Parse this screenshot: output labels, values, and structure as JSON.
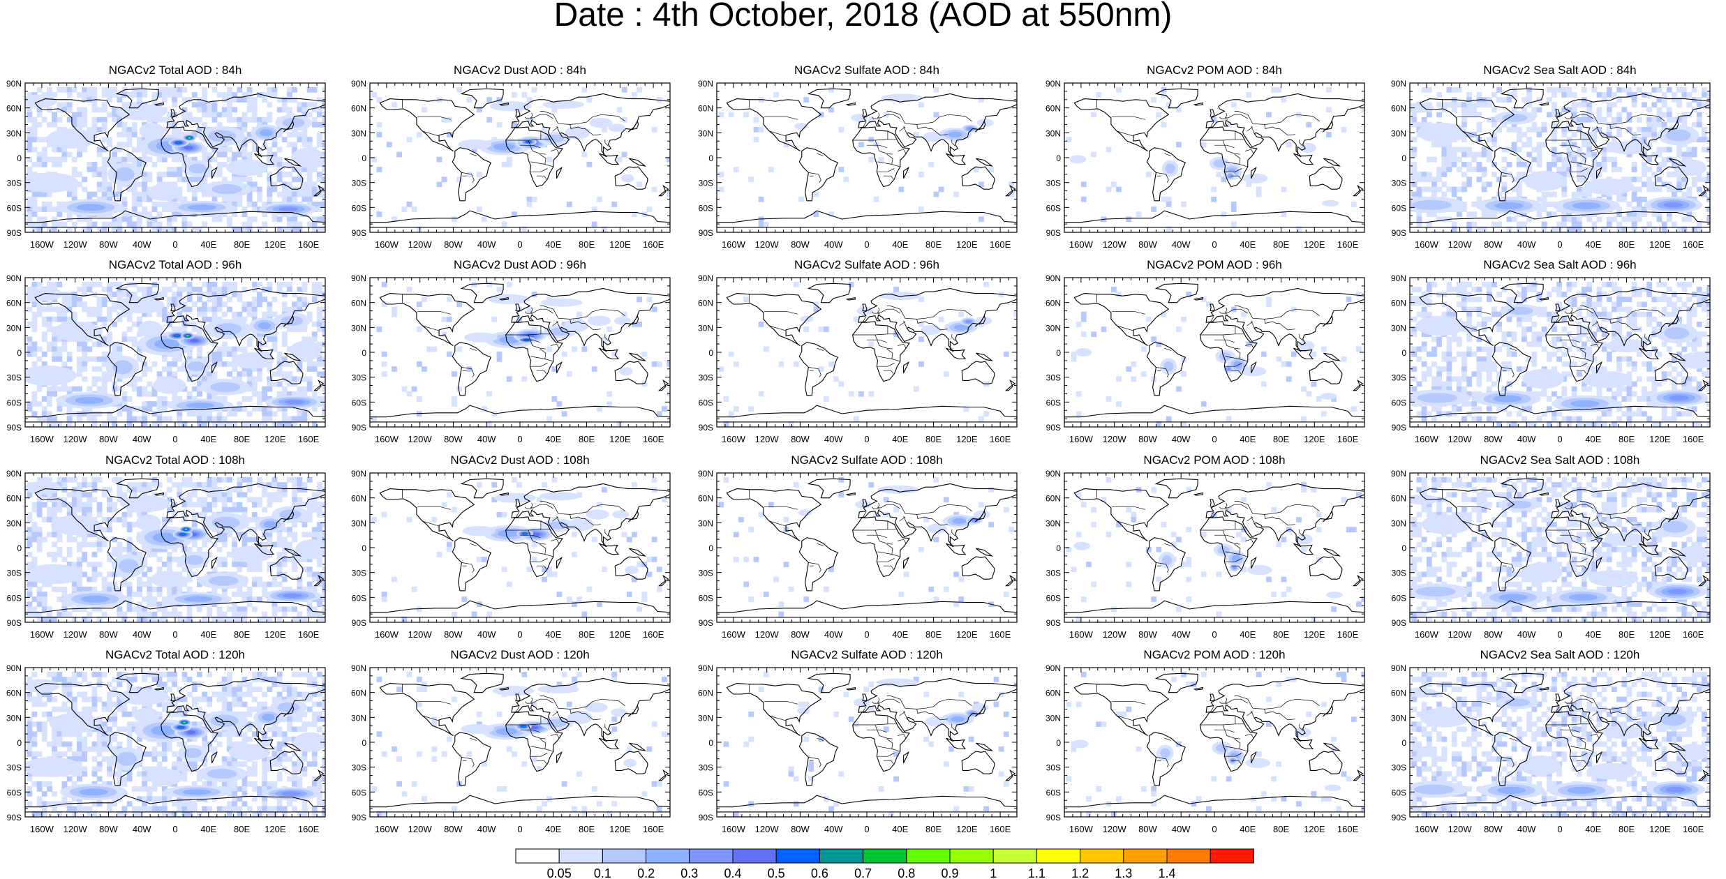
{
  "title": "Date : 4th October, 2018 (AOD at 550nm)",
  "lat_labels": [
    "90N",
    "60N",
    "30N",
    "0",
    "30S",
    "60S",
    "90S"
  ],
  "lon_labels": [
    "160W",
    "120W",
    "80W",
    "40W",
    "0",
    "40E",
    "80E",
    "120E",
    "160E"
  ],
  "panels": [
    [
      "NGACv2 Total AOD : 84h",
      "NGACv2 Dust AOD : 84h",
      "NGACv2 Sulfate AOD : 84h",
      "NGACv2 POM AOD : 84h",
      "NGACv2 Sea Salt AOD : 84h"
    ],
    [
      "NGACv2 Total AOD : 96h",
      "NGACv2 Dust AOD : 96h",
      "NGACv2 Sulfate AOD : 96h",
      "NGACv2 POM AOD : 96h",
      "NGACv2 Sea Salt AOD : 96h"
    ],
    [
      "NGACv2 Total AOD : 108h",
      "NGACv2 Dust AOD : 108h",
      "NGACv2 Sulfate AOD : 108h",
      "NGACv2 POM AOD : 108h",
      "NGACv2 Sea Salt AOD : 108h"
    ],
    [
      "NGACv2 Total AOD : 120h",
      "NGACv2 Dust AOD : 120h",
      "NGACv2 Sulfate AOD : 120h",
      "NGACv2 POM AOD : 120h",
      "NGACv2 Sea Salt  AOD : 120h"
    ]
  ],
  "colorbar": {
    "labels": [
      "0.05",
      "0.1",
      "0.2",
      "0.3",
      "0.4",
      "0.5",
      "0.6",
      "0.7",
      "0.8",
      "0.9",
      "1",
      "1.1",
      "1.2",
      "1.3",
      "1.4"
    ],
    "colors": [
      "#ffffff",
      "#d6e2ff",
      "#b5c9ff",
      "#8eb2ff",
      "#7f96ff",
      "#6370f8",
      "#0063ff",
      "#009696",
      "#00c633",
      "#63ff00",
      "#96ff00",
      "#c6ff33",
      "#ffff00",
      "#ffc600",
      "#ffa000",
      "#ff7c00",
      "#ff1900"
    ]
  },
  "land_color": "#000000",
  "ocean_color": "#ffffff"
}
